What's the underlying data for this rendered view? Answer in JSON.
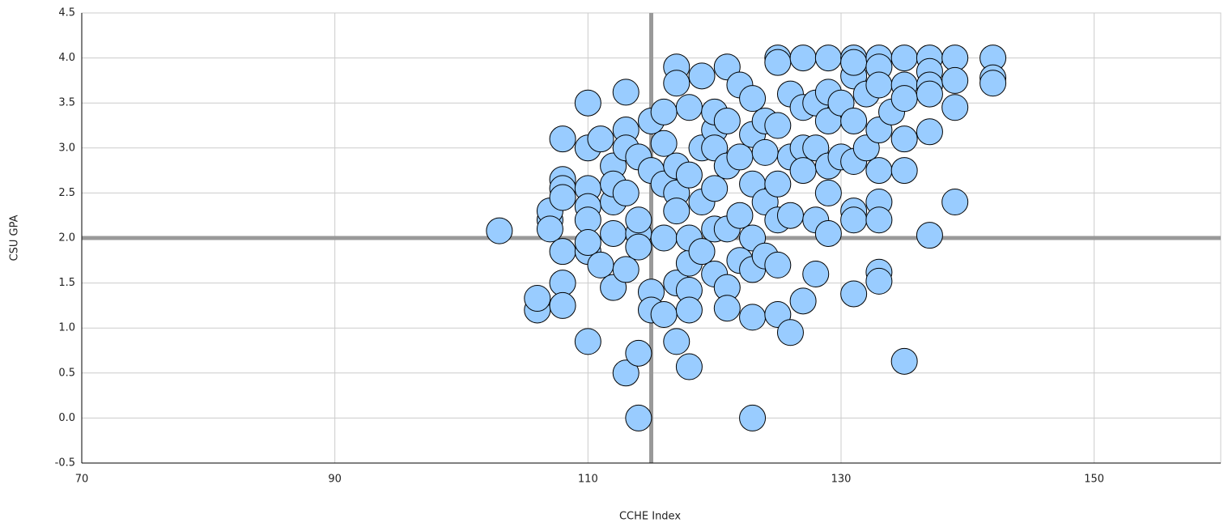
{
  "chart_data": {
    "type": "scatter",
    "x_label": "CCHE Index",
    "y_label": "CSU GPA",
    "color": "#99ccff",
    "xlim": [
      70,
      160
    ],
    "ylim": [
      -0.5,
      4.5
    ],
    "xticks": [
      70,
      90,
      110,
      130,
      150
    ],
    "yticks": [
      -0.5,
      {
        "value": 0,
        "label": "0.0"
      },
      0.5,
      {
        "value": 1,
        "label": "1.0"
      },
      1.5,
      {
        "value": 2,
        "label": "2.0"
      },
      2.5,
      {
        "value": 3,
        "label": "3.0"
      },
      3.5,
      {
        "value": 4,
        "label": "4.0"
      },
      4.5
    ],
    "grid": true,
    "reference_lines": {
      "x": 115,
      "y": 2
    },
    "x": [
      103,
      106,
      106,
      107,
      107,
      107,
      108,
      108,
      108,
      108,
      108,
      108,
      108,
      110,
      110,
      110,
      110,
      110,
      110,
      110,
      110,
      111,
      111,
      112,
      112,
      112,
      112,
      112,
      113,
      113,
      113,
      113,
      113,
      113,
      114,
      114,
      114,
      114,
      114,
      114,
      115,
      115,
      115,
      115,
      116,
      116,
      116,
      116,
      116,
      117,
      117,
      117,
      117,
      117,
      117,
      117,
      118,
      118,
      118,
      118,
      118,
      118,
      118,
      119,
      119,
      119,
      119,
      120,
      120,
      120,
      120,
      120,
      120,
      121,
      121,
      121,
      121,
      121,
      121,
      122,
      122,
      122,
      122,
      123,
      123,
      123,
      123,
      123,
      123,
      123,
      124,
      124,
      124,
      124,
      125,
      125,
      125,
      125,
      125,
      125,
      125,
      126,
      126,
      126,
      126,
      127,
      127,
      127,
      127,
      127,
      128,
      128,
      128,
      128,
      129,
      129,
      129,
      129,
      129,
      129,
      130,
      130,
      131,
      131,
      131,
      131,
      131,
      131,
      131,
      131,
      132,
      132,
      133,
      133,
      133,
      133,
      133,
      133,
      133,
      133,
      133,
      134,
      135,
      135,
      135,
      135,
      135,
      135,
      137,
      137,
      137,
      137,
      137,
      137,
      139,
      139,
      139,
      139,
      142,
      142,
      142
    ],
    "values": [
      2.08,
      1.2,
      1.33,
      2.2,
      2.3,
      2.1,
      3.1,
      2.65,
      2.55,
      1.85,
      1.5,
      1.25,
      2.45,
      3.5,
      3.0,
      2.55,
      2.35,
      2.2,
      1.85,
      0.85,
      1.95,
      1.7,
      3.1,
      2.8,
      2.4,
      2.05,
      1.45,
      2.6,
      3.62,
      3.2,
      3.0,
      1.65,
      0.5,
      2.5,
      2.05,
      1.9,
      0.72,
      0.0,
      2.9,
      2.2,
      2.75,
      1.4,
      1.2,
      3.3,
      3.4,
      3.05,
      2.0,
      2.6,
      1.15,
      3.9,
      3.72,
      2.5,
      2.3,
      0.85,
      1.5,
      2.8,
      3.45,
      1.72,
      1.42,
      1.2,
      0.57,
      2.0,
      2.7,
      3.8,
      3.0,
      2.4,
      1.85,
      3.2,
      3.0,
      2.55,
      2.1,
      1.6,
      3.4,
      3.9,
      2.8,
      2.1,
      1.45,
      1.22,
      3.3,
      3.7,
      2.25,
      2.9,
      1.75,
      3.55,
      3.15,
      2.6,
      1.65,
      1.12,
      0.0,
      2.0,
      2.95,
      1.8,
      3.3,
      2.4,
      4.0,
      3.95,
      3.25,
      2.6,
      2.2,
      1.7,
      1.15,
      2.25,
      0.95,
      3.6,
      2.9,
      4.0,
      3.0,
      2.75,
      1.3,
      3.45,
      3.5,
      2.2,
      1.6,
      3.0,
      4.0,
      3.62,
      3.3,
      2.5,
      2.05,
      2.8,
      3.5,
      2.9,
      4.0,
      3.8,
      3.3,
      2.85,
      2.3,
      2.2,
      1.38,
      3.95,
      3.6,
      3.0,
      4.0,
      3.9,
      3.7,
      3.2,
      2.4,
      2.2,
      1.62,
      1.52,
      2.75,
      3.4,
      4.0,
      3.7,
      3.55,
      3.1,
      2.75,
      0.63,
      4.0,
      3.85,
      3.7,
      3.18,
      2.03,
      3.6,
      4.0,
      3.75,
      3.45,
      2.4,
      4.0,
      3.78,
      3.72
    ]
  }
}
